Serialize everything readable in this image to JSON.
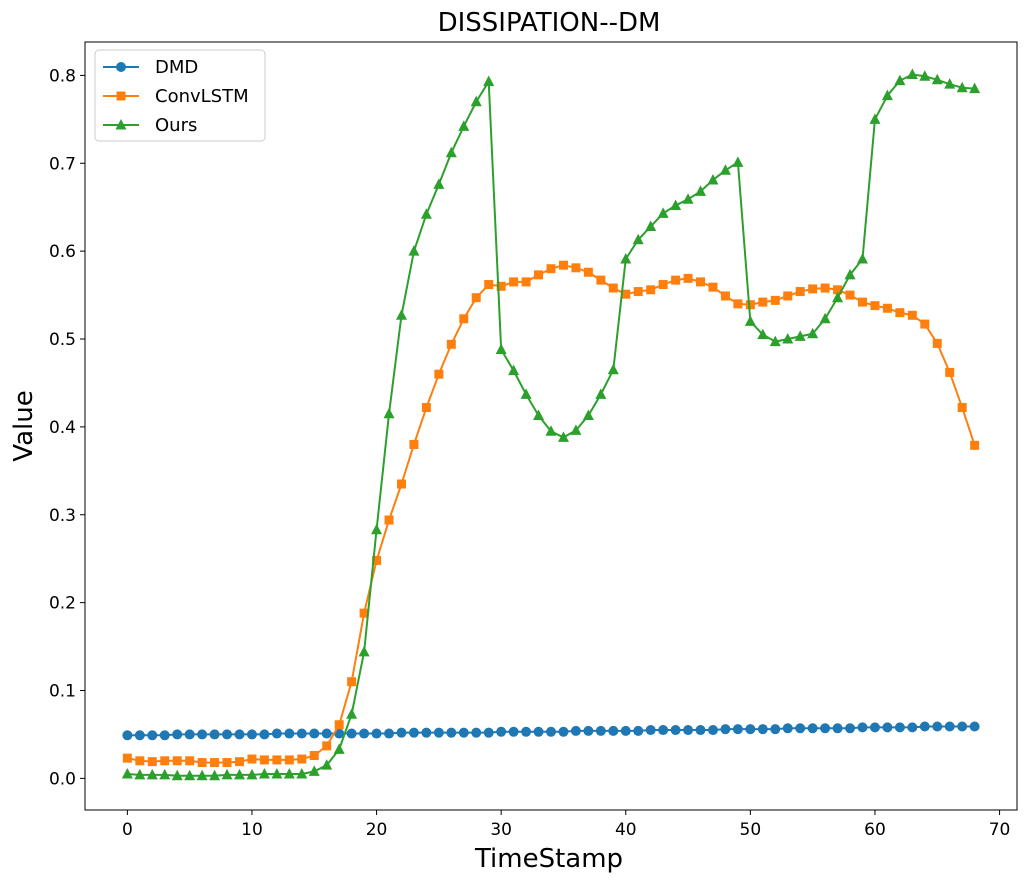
{
  "chart_data": {
    "type": "line",
    "title": "DISSIPATION--DM",
    "xlabel": "TimeStamp",
    "ylabel": "Value",
    "xlim": [
      -3.4,
      71.4
    ],
    "ylim": [
      -0.036,
      0.838
    ],
    "xticks": [
      0,
      10,
      20,
      30,
      40,
      50,
      60,
      70
    ],
    "yticks": [
      0.0,
      0.1,
      0.2,
      0.3,
      0.4,
      0.5,
      0.6,
      0.7,
      0.8
    ],
    "grid": false,
    "legend_position": "top-left",
    "x": [
      0,
      1,
      2,
      3,
      4,
      5,
      6,
      7,
      8,
      9,
      10,
      11,
      12,
      13,
      14,
      15,
      16,
      17,
      18,
      19,
      20,
      21,
      22,
      23,
      24,
      25,
      26,
      27,
      28,
      29,
      30,
      31,
      32,
      33,
      34,
      35,
      36,
      37,
      38,
      39,
      40,
      41,
      42,
      43,
      44,
      45,
      46,
      47,
      48,
      49,
      50,
      51,
      52,
      53,
      54,
      55,
      56,
      57,
      58,
      59,
      60,
      61,
      62,
      63,
      64,
      65,
      66,
      67,
      68
    ],
    "series": [
      {
        "name": "DMD",
        "color": "#1f77b4",
        "marker": "circle",
        "values": [
          0.049,
          0.049,
          0.049,
          0.049,
          0.05,
          0.05,
          0.05,
          0.05,
          0.05,
          0.05,
          0.05,
          0.05,
          0.051,
          0.051,
          0.051,
          0.051,
          0.051,
          0.051,
          0.051,
          0.051,
          0.051,
          0.051,
          0.052,
          0.052,
          0.052,
          0.052,
          0.052,
          0.052,
          0.052,
          0.052,
          0.053,
          0.053,
          0.053,
          0.053,
          0.053,
          0.053,
          0.054,
          0.054,
          0.054,
          0.054,
          0.054,
          0.054,
          0.055,
          0.055,
          0.055,
          0.055,
          0.055,
          0.055,
          0.056,
          0.056,
          0.056,
          0.056,
          0.056,
          0.057,
          0.057,
          0.057,
          0.057,
          0.057,
          0.057,
          0.058,
          0.058,
          0.058,
          0.058,
          0.058,
          0.059,
          0.059,
          0.059,
          0.059,
          0.059
        ]
      },
      {
        "name": "ConvLSTM",
        "color": "#ff7f0e",
        "marker": "square",
        "values": [
          0.023,
          0.02,
          0.019,
          0.02,
          0.02,
          0.02,
          0.018,
          0.018,
          0.018,
          0.019,
          0.022,
          0.021,
          0.021,
          0.021,
          0.022,
          0.026,
          0.037,
          0.061,
          0.11,
          0.188,
          0.248,
          0.294,
          0.335,
          0.38,
          0.422,
          0.46,
          0.494,
          0.523,
          0.547,
          0.562,
          0.56,
          0.565,
          0.565,
          0.573,
          0.58,
          0.584,
          0.581,
          0.576,
          0.567,
          0.558,
          0.551,
          0.554,
          0.556,
          0.562,
          0.567,
          0.569,
          0.565,
          0.559,
          0.549,
          0.54,
          0.539,
          0.542,
          0.544,
          0.549,
          0.554,
          0.557,
          0.558,
          0.556,
          0.55,
          0.542,
          0.538,
          0.535,
          0.53,
          0.527,
          0.517,
          0.495,
          0.462,
          0.422,
          0.379
        ]
      },
      {
        "name": "Ours",
        "color": "#2ca02c",
        "marker": "triangle",
        "values": [
          0.005,
          0.004,
          0.004,
          0.004,
          0.003,
          0.003,
          0.003,
          0.003,
          0.004,
          0.004,
          0.004,
          0.005,
          0.005,
          0.005,
          0.005,
          0.008,
          0.015,
          0.033,
          0.073,
          0.144,
          0.283,
          0.415,
          0.527,
          0.6,
          0.642,
          0.676,
          0.712,
          0.742,
          0.77,
          0.793,
          0.488,
          0.464,
          0.437,
          0.413,
          0.395,
          0.388,
          0.396,
          0.413,
          0.437,
          0.465,
          0.591,
          0.613,
          0.628,
          0.643,
          0.652,
          0.659,
          0.668,
          0.681,
          0.692,
          0.701,
          0.52,
          0.505,
          0.497,
          0.5,
          0.503,
          0.506,
          0.523,
          0.547,
          0.573,
          0.591,
          0.75,
          0.777,
          0.794,
          0.801,
          0.799,
          0.795,
          0.79,
          0.786,
          0.785
        ]
      }
    ]
  }
}
